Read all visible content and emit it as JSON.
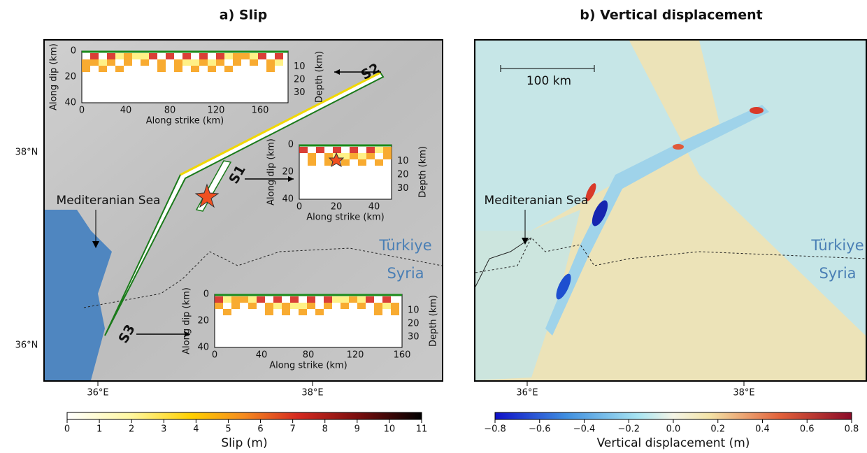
{
  "panel_a": {
    "title": "a) Slip",
    "lat_labels": [
      "38°N",
      "36°N"
    ],
    "lon_labels": [
      "36°E",
      "38°E"
    ],
    "sea_label": "Mediteranian Sea",
    "country_labels": [
      "Türkiye",
      "Syria"
    ],
    "segments": [
      "S1",
      "S2",
      "S3"
    ],
    "insets": [
      {
        "y_label": "Along dip (km)",
        "x_label": "Along strike (km)",
        "depth_label": "Depth (km)",
        "x_ticks": [
          "0",
          "40",
          "80",
          "120",
          "160"
        ],
        "y_ticks": [
          "0",
          "20",
          "40"
        ],
        "depth_ticks": [
          "10",
          "20",
          "30"
        ]
      },
      {
        "y_label": "Along dip (km)",
        "x_label": "Along strike (km)",
        "depth_label": "Depth (km)",
        "x_ticks": [
          "0",
          "20",
          "40"
        ],
        "y_ticks": [
          "0",
          "20",
          "40"
        ],
        "depth_ticks": [
          "10",
          "20",
          "30"
        ]
      },
      {
        "y_label": "Along dip (km)",
        "x_label": "Along strike (km)",
        "depth_label": "Depth (km)",
        "x_ticks": [
          "0",
          "40",
          "80",
          "120",
          "160"
        ],
        "y_ticks": [
          "0",
          "20",
          "40"
        ],
        "depth_ticks": [
          "10",
          "20",
          "30"
        ]
      }
    ],
    "colorbar": {
      "label": "Slip (m)",
      "ticks": [
        "0",
        "1",
        "2",
        "3",
        "4",
        "5",
        "6",
        "7",
        "8",
        "9",
        "10",
        "11"
      ]
    }
  },
  "panel_b": {
    "title": "b) Vertical displacement",
    "lon_labels": [
      "36°E",
      "38°E"
    ],
    "scale_label": "100 km",
    "sea_label": "Mediteranian Sea",
    "country_labels": [
      "Türkiye",
      "Syria"
    ],
    "colorbar": {
      "label": "Vertical displacement (m)",
      "ticks": [
        "−0.8",
        "−0.6",
        "−0.4",
        "−0.2",
        "0.0",
        "0.2",
        "0.4",
        "0.6",
        "0.8"
      ]
    }
  }
}
